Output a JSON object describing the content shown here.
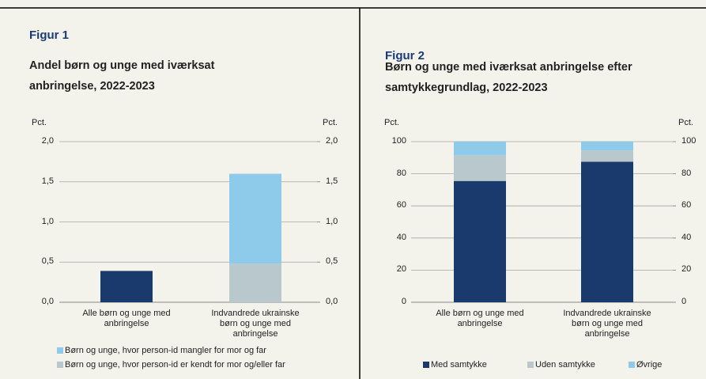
{
  "chart_data": [
    {
      "type": "bar",
      "stacked": true,
      "label": "Figur 1",
      "title": "Andel børn og unge med iværksat anbringelse, 2022-2023",
      "ylabel": "Pct.",
      "y2label": "Pct.",
      "categories": [
        "Alle børn og unge med anbringelse",
        "Indvandrede ukrainske børn og unge med anbringelse"
      ],
      "series": [
        {
          "color": "#1a3a6e",
          "values": [
            0.39,
            null
          ]
        },
        {
          "name": "Børn og unge, hvor person-id er kendt for mor og/eller far",
          "color": "#b9c8cc",
          "values": [
            null,
            0.48
          ]
        },
        {
          "name": "Børn og unge, hvor person-id mangler for mor og far",
          "color": "#8ecbea",
          "values": [
            null,
            1.12
          ]
        }
      ],
      "ylim": [
        0,
        2
      ],
      "yticks": [
        {
          "value": 0,
          "label": "0,0"
        },
        {
          "value": 0.5,
          "label": "0,5"
        },
        {
          "value": 1,
          "label": "1,0"
        },
        {
          "value": 1.5,
          "label": "1,5"
        },
        {
          "value": 2,
          "label": "2,0"
        }
      ],
      "y2lim": [
        0,
        2
      ],
      "y2ticks": [
        {
          "value": 0,
          "label": "0,0"
        },
        {
          "value": 0.5,
          "label": "0,5"
        },
        {
          "value": 1,
          "label": "1,0"
        },
        {
          "value": 1.5,
          "label": "1,5"
        },
        {
          "value": 2,
          "label": "2,0"
        }
      ],
      "grid": true,
      "legend": "bottom"
    },
    {
      "type": "bar",
      "stacked": true,
      "label": "Figur 2",
      "title": "Børn og unge med iværksat anbringelse efter samtykkegrundlag, 2022-2023",
      "ylabel": "Pct.",
      "y2label": "Pct.",
      "categories": [
        "Alle børn og unge med anbringelse",
        "Indvandrede ukrainske børn og unge med anbringelse"
      ],
      "series": [
        {
          "name": "Med samtykke",
          "color": "#1a3a6e",
          "values": [
            75.5,
            87.5
          ]
        },
        {
          "name": "Uden samtykke",
          "color": "#b9c8cc",
          "values": [
            16,
            7
          ]
        },
        {
          "name": "Øvrige",
          "color": "#8ecbea",
          "values": [
            8.5,
            5.5
          ]
        }
      ],
      "ylim": [
        0,
        100
      ],
      "yticks": [
        0,
        20,
        40,
        60,
        80,
        100
      ],
      "y2lim": [
        0,
        100
      ],
      "y2ticks": [
        0,
        20,
        40,
        60,
        80,
        100
      ],
      "grid": true,
      "legend": "bottom"
    }
  ]
}
